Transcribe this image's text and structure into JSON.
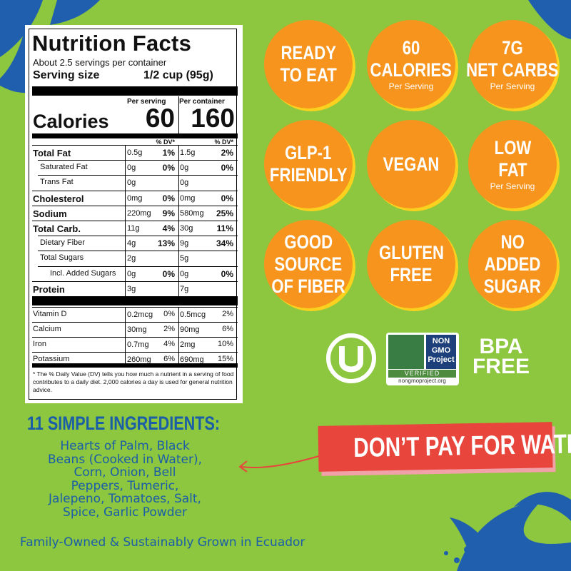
{
  "nutrition": {
    "title": "Nutrition Facts",
    "servings": "About 2.5 servings per container",
    "serving_size_label": "Serving size",
    "serving_size_value": "1/2 cup (95g)",
    "per_serving": "Per serving",
    "per_container": "Per container",
    "calories_label": "Calories",
    "calories_serving": "60",
    "calories_container": "160",
    "dv_serving": "% DV*",
    "dv_container": "% DV*",
    "rows": [
      {
        "name": "Total Fat",
        "serving": "0.5g",
        "serving_dv": "1%",
        "container": "1.5g",
        "container_dv": "2%"
      },
      {
        "name": "Saturated Fat",
        "serving": "0g",
        "serving_dv": "0%",
        "container": "0g",
        "container_dv": "0%"
      },
      {
        "name": "Trans Fat",
        "serving": "0g",
        "container": "0g"
      },
      {
        "name": "Cholesterol",
        "serving": "0mg",
        "serving_dv": "0%",
        "container": "0mg",
        "container_dv": "0%"
      },
      {
        "name": "Sodium",
        "serving": "220mg",
        "serving_dv": "9%",
        "container": "580mg",
        "container_dv": "25%"
      },
      {
        "name": "Total Carb.",
        "serving": "11g",
        "serving_dv": "4%",
        "container": "30g",
        "container_dv": "11%"
      },
      {
        "name": "Dietary Fiber",
        "serving": "4g",
        "serving_dv": "13%",
        "container": "9g",
        "container_dv": "34%"
      },
      {
        "name": "Total Sugars",
        "serving": "2g",
        "container": "5g"
      },
      {
        "name": "Incl. Added Sugars",
        "serving": "0g",
        "serving_dv": "0%",
        "container": "0g",
        "container_dv": "0%"
      },
      {
        "name": "Protein",
        "serving": "3g",
        "container": "7g"
      }
    ],
    "vitamins": [
      {
        "name": "Vitamin D",
        "serving": "0.2mcg",
        "serving_dv": "0%",
        "container": "0.5mcg",
        "container_dv": "2%"
      },
      {
        "name": "Calcium",
        "serving": "30mg",
        "serving_dv": "2%",
        "container": "90mg",
        "container_dv": "6%"
      },
      {
        "name": "Iron",
        "serving": "0.7mg",
        "serving_dv": "4%",
        "container": "2mg",
        "container_dv": "10%"
      },
      {
        "name": "Potassium",
        "serving": "260mg",
        "serving_dv": "6%",
        "container": "690mg",
        "container_dv": "15%"
      }
    ],
    "footnote": "* The % Daily Value (DV) tells you how much a nutrient in a serving of food contributes to a daily diet. 2,000 calories a day is used for general nutrition advice."
  },
  "badges": [
    {
      "lines": [
        "READY",
        "TO EAT"
      ]
    },
    {
      "lines": [
        "60",
        "CALORIES"
      ],
      "sub": "Per Serving"
    },
    {
      "lines": [
        "7G",
        "NET CARBS"
      ],
      "sub": "Per Serving"
    },
    {
      "lines": [
        "GLP-1",
        "FRIENDLY"
      ]
    },
    {
      "lines": [
        "VEGAN"
      ]
    },
    {
      "lines": [
        "LOW",
        "FAT"
      ],
      "sub": "Per Serving"
    },
    {
      "lines": [
        "GOOD",
        "SOURCE",
        "OF FIBER"
      ]
    },
    {
      "lines": [
        "GLUTEN",
        "FREE"
      ]
    },
    {
      "lines": [
        "NO",
        "ADDED",
        "SUGAR"
      ]
    }
  ],
  "certifications": {
    "non_gmo": {
      "lines": [
        "NON",
        "GMO",
        "Project"
      ],
      "verified": "VERIFIED",
      "url": "nongmoproject.org"
    },
    "bpa": [
      "BPA",
      "FREE"
    ]
  },
  "ingredients": {
    "heading": "11 SIMPLE INGREDIENTS:",
    "lines": [
      "Hearts of Palm, Black",
      "Beans (Cooked in Water),",
      "Corn, Onion, Bell",
      "Peppers, Tumeric,",
      "Jalepeno, Tomatoes, Salt,",
      "Spice, Garlic Powder"
    ]
  },
  "banner": "DON’T PAY FOR WATER!",
  "footer": "Family-Owned & Sustainably Grown in Ecuador"
}
